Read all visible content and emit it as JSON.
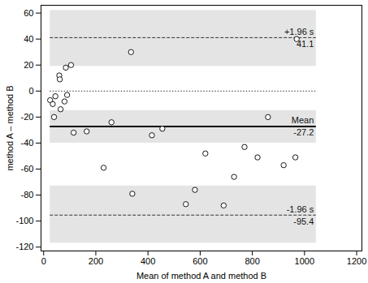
{
  "chart_data": {
    "type": "scatter",
    "xlabel": "Mean of method A and method B",
    "ylabel": "method A – method B",
    "x": [
      25,
      35,
      40,
      45,
      60,
      62,
      65,
      80,
      85,
      90,
      105,
      115,
      165,
      230,
      260,
      335,
      340,
      415,
      455,
      545,
      580,
      620,
      690,
      730,
      770,
      820,
      860,
      920,
      965,
      970
    ],
    "y": [
      -7,
      -10,
      -20,
      -4,
      12,
      9,
      -14,
      -8,
      18,
      -3,
      20,
      -32,
      -31,
      -59,
      -24,
      30,
      -79,
      -34,
      -29,
      -87,
      -76,
      -48,
      -88,
      -66,
      -43,
      -51,
      -20,
      -57,
      -51,
      40
    ],
    "xlim": [
      -10,
      1220
    ],
    "ylim": [
      -123,
      66
    ],
    "xticks": [
      0,
      200,
      400,
      600,
      800,
      1000,
      1200
    ],
    "yticks": [
      -120,
      -100,
      -80,
      -60,
      -40,
      -20,
      0,
      20,
      40,
      60
    ],
    "marker": "circle",
    "color": "#000000",
    "reference_x": [
      25,
      1045
    ],
    "reference_lines": [
      {
        "value": 0,
        "line_style": "dotted"
      },
      {
        "value": 41.1,
        "label": "+1.96 s",
        "line_style": "dashed",
        "band": [
          19,
          62
        ]
      },
      {
        "value": -27.2,
        "label": "Mean",
        "line_style": "solid",
        "band": [
          -40,
          -15
        ]
      },
      {
        "value": -95.4,
        "label": "-1.96 s",
        "line_style": "dashed",
        "band": [
          -117,
          -73
        ]
      }
    ]
  }
}
